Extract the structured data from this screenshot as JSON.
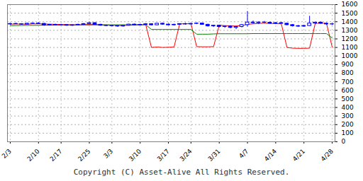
{
  "chart_data": {
    "type": "candlestick",
    "caption": "Copyright (C) Asset-Alive All Rights Reserved.",
    "color": "#0000ff",
    "x": [
      "2/3",
      null,
      null,
      null,
      null,
      "2/10",
      null,
      null,
      null,
      "2/17",
      null,
      null,
      null,
      null,
      "2/25",
      null,
      null,
      null,
      "3/3",
      null,
      null,
      null,
      null,
      "3/10",
      null,
      null,
      null,
      null,
      "3/17",
      null,
      null,
      null,
      "3/24",
      null,
      null,
      null,
      null,
      "3/31",
      null,
      null,
      null,
      null,
      "4/7",
      null,
      null,
      null,
      null,
      "4/14",
      null,
      null,
      null,
      null,
      "4/21",
      null,
      null,
      null,
      null,
      "4/28"
    ],
    "open": [
      1370,
      1375,
      1372,
      1368,
      1378,
      1380,
      1376,
      1358,
      1365,
      1360,
      1362,
      1355,
      1360,
      1366,
      1374,
      1385,
      1366,
      1355,
      1352,
      1350,
      1346,
      1355,
      1368,
      1360,
      1365,
      1372,
      1360,
      1378,
      1368,
      1360,
      1366,
      1374,
      1370,
      1376,
      1380,
      1366,
      1348,
      1355,
      1340,
      1345,
      1330,
      1340,
      1362,
      1392,
      1385,
      1392,
      1390,
      1380,
      1385,
      1378,
      1362,
      1350,
      1345,
      1352,
      1380,
      1390,
      1378,
      1370
    ],
    "high": [
      1380,
      1385,
      1378,
      1382,
      1388,
      1390,
      1382,
      1370,
      1372,
      1370,
      1368,
      1365,
      1372,
      1380,
      1395,
      1390,
      1372,
      1362,
      1360,
      1358,
      1360,
      1372,
      1375,
      1372,
      1380,
      1378,
      1382,
      1385,
      1375,
      1372,
      1378,
      1385,
      1382,
      1388,
      1386,
      1372,
      1360,
      1362,
      1352,
      1355,
      1348,
      1370,
      1520,
      1410,
      1400,
      1405,
      1398,
      1392,
      1395,
      1385,
      1370,
      1358,
      1360,
      1465,
      1398,
      1400,
      1388,
      1382
    ],
    "low": [
      1360,
      1368,
      1362,
      1365,
      1370,
      1372,
      1350,
      1352,
      1355,
      1352,
      1350,
      1348,
      1355,
      1360,
      1368,
      1362,
      1350,
      1345,
      1342,
      1338,
      1340,
      1350,
      1355,
      1352,
      1360,
      1355,
      1358,
      1362,
      1355,
      1352,
      1360,
      1362,
      1360,
      1368,
      1362,
      1340,
      1335,
      1330,
      1325,
      1320,
      1310,
      1330,
      1340,
      1375,
      1368,
      1380,
      1372,
      1368,
      1372,
      1355,
      1340,
      1335,
      1338,
      1348,
      1368,
      1372,
      1360,
      1358
    ],
    "close": [
      1375,
      1372,
      1368,
      1378,
      1380,
      1376,
      1358,
      1365,
      1360,
      1362,
      1355,
      1360,
      1366,
      1374,
      1385,
      1366,
      1355,
      1352,
      1350,
      1346,
      1355,
      1368,
      1360,
      1365,
      1372,
      1360,
      1378,
      1368,
      1360,
      1366,
      1374,
      1370,
      1376,
      1380,
      1366,
      1348,
      1355,
      1340,
      1345,
      1330,
      1340,
      1362,
      1392,
      1385,
      1392,
      1390,
      1380,
      1385,
      1378,
      1362,
      1350,
      1345,
      1352,
      1380,
      1390,
      1378,
      1370,
      1372
    ],
    "series": [
      {
        "type": "line",
        "color": "#ff0000",
        "values": [
          1372,
          1374,
          1373,
          1372,
          1375,
          1376,
          1374,
          1372,
          1370,
          1368,
          1366,
          1365,
          1364,
          1366,
          1368,
          1366,
          1364,
          1362,
          1360,
          1358,
          1357,
          1360,
          1362,
          1365,
          1364,
          1100,
          1105,
          1100,
          1102,
          1105,
          1375,
          1376,
          1378,
          1110,
          1108,
          1108,
          1110,
          1360,
          1355,
          1352,
          1350,
          1355,
          1370,
          1375,
          1380,
          1382,
          1380,
          1378,
          1375,
          1100,
          1092,
          1090,
          1090,
          1092,
          1380,
          1385,
          1380,
          1105
        ]
      },
      {
        "type": "line",
        "color": "#008000",
        "values": [
          1355,
          1356,
          1357,
          1358,
          1358,
          1359,
          1360,
          1360,
          1361,
          1361,
          1362,
          1362,
          1362,
          1363,
          1363,
          1364,
          1364,
          1364,
          1364,
          1364,
          1364,
          1364,
          1365,
          1365,
          1365,
          1310,
          1310,
          1310,
          1310,
          1310,
          1310,
          1310,
          1310,
          1255,
          1255,
          1255,
          1258,
          1260,
          1260,
          1260,
          1260,
          1260,
          1260,
          1262,
          1262,
          1262,
          1262,
          1262,
          1262,
          1262,
          1262,
          1262,
          1262,
          1262,
          1262,
          1262,
          1262,
          1210
        ]
      }
    ],
    "ylim": [
      0,
      1600
    ],
    "yticks": [
      0,
      100,
      200,
      300,
      400,
      500,
      600,
      700,
      800,
      900,
      1000,
      1100,
      1200,
      1300,
      1400,
      1500,
      1600
    ],
    "grid": true
  }
}
